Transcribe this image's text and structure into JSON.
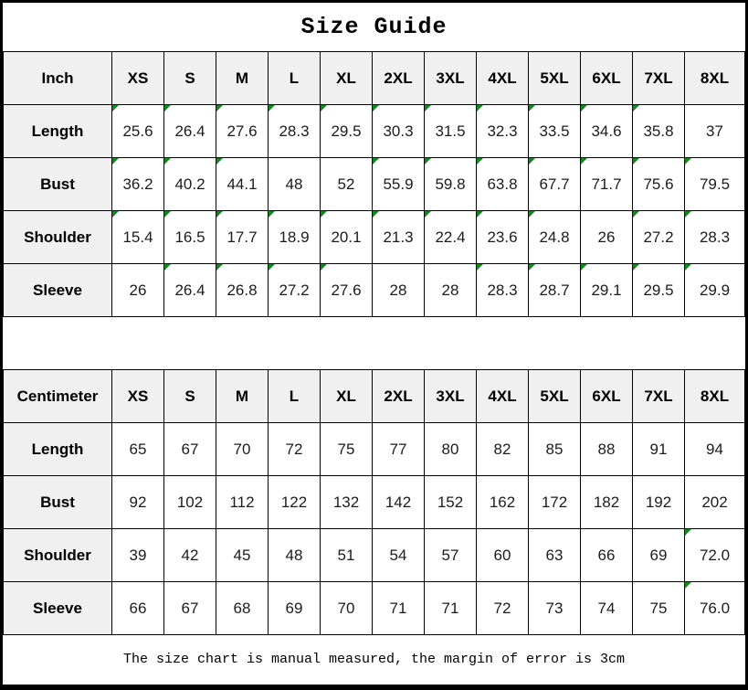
{
  "title": "Size Guide",
  "footer_note": "The size chart is manual measured, the margin of error is 3cm",
  "colors": {
    "flag_green": "#12891f",
    "header_bg": "#f0f0f0",
    "border": "#000000",
    "text": "#1c1c1c"
  },
  "sizes": [
    "XS",
    "S",
    "M",
    "L",
    "XL",
    "2XL",
    "3XL",
    "4XL",
    "5XL",
    "6XL",
    "7XL",
    "8XL"
  ],
  "tables": [
    {
      "unit": "Inch",
      "rows": [
        {
          "label": "Length",
          "values": [
            "25.6",
            "26.4",
            "27.6",
            "28.3",
            "29.5",
            "30.3",
            "31.5",
            "32.3",
            "33.5",
            "34.6",
            "35.8",
            "37"
          ],
          "flags": [
            1,
            1,
            1,
            1,
            1,
            1,
            1,
            1,
            1,
            1,
            1,
            0
          ]
        },
        {
          "label": "Bust",
          "values": [
            "36.2",
            "40.2",
            "44.1",
            "48",
            "52",
            "55.9",
            "59.8",
            "63.8",
            "67.7",
            "71.7",
            "75.6",
            "79.5"
          ],
          "flags": [
            1,
            1,
            1,
            0,
            0,
            1,
            1,
            1,
            1,
            1,
            1,
            1
          ]
        },
        {
          "label": "Shoulder",
          "values": [
            "15.4",
            "16.5",
            "17.7",
            "18.9",
            "20.1",
            "21.3",
            "22.4",
            "23.6",
            "24.8",
            "26",
            "27.2",
            "28.3"
          ],
          "flags": [
            1,
            1,
            1,
            1,
            1,
            1,
            1,
            1,
            1,
            0,
            1,
            1
          ]
        },
        {
          "label": "Sleeve",
          "values": [
            "26",
            "26.4",
            "26.8",
            "27.2",
            "27.6",
            "28",
            "28",
            "28.3",
            "28.7",
            "29.1",
            "29.5",
            "29.9"
          ],
          "flags": [
            0,
            1,
            1,
            1,
            1,
            0,
            0,
            1,
            1,
            1,
            1,
            1
          ]
        }
      ]
    },
    {
      "unit": "Centimeter",
      "rows": [
        {
          "label": "Length",
          "values": [
            "65",
            "67",
            "70",
            "72",
            "75",
            "77",
            "80",
            "82",
            "85",
            "88",
            "91",
            "94"
          ],
          "flags": [
            0,
            0,
            0,
            0,
            0,
            0,
            0,
            0,
            0,
            0,
            0,
            0
          ]
        },
        {
          "label": "Bust",
          "values": [
            "92",
            "102",
            "112",
            "122",
            "132",
            "142",
            "152",
            "162",
            "172",
            "182",
            "192",
            "202"
          ],
          "flags": [
            0,
            0,
            0,
            0,
            0,
            0,
            0,
            0,
            0,
            0,
            0,
            0
          ]
        },
        {
          "label": "Shoulder",
          "values": [
            "39",
            "42",
            "45",
            "48",
            "51",
            "54",
            "57",
            "60",
            "63",
            "66",
            "69",
            "72.0"
          ],
          "flags": [
            0,
            0,
            0,
            0,
            0,
            0,
            0,
            0,
            0,
            0,
            0,
            1
          ]
        },
        {
          "label": "Sleeve",
          "values": [
            "66",
            "67",
            "68",
            "69",
            "70",
            "71",
            "71",
            "72",
            "73",
            "74",
            "75",
            "76.0"
          ],
          "flags": [
            0,
            0,
            0,
            0,
            0,
            0,
            0,
            0,
            0,
            0,
            0,
            1
          ]
        }
      ]
    }
  ]
}
